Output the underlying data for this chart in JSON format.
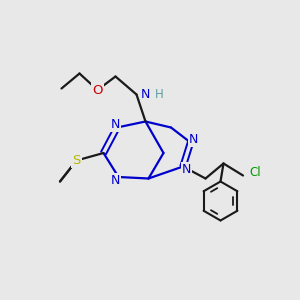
{
  "bg_color": "#e8e8e8",
  "bond_color": "#1a1a1a",
  "ring_color": "#0000cc",
  "atom_colors": {
    "N": "#0000cc",
    "S": "#b8b800",
    "O": "#cc0000",
    "Cl": "#009900",
    "NH": "#5f9ea0",
    "H": "#5f9ea0",
    "C": "#1a1a1a"
  },
  "figsize": [
    3.0,
    3.0
  ],
  "dpi": 100,
  "xlim": [
    0,
    10
  ],
  "ylim": [
    0,
    10
  ]
}
